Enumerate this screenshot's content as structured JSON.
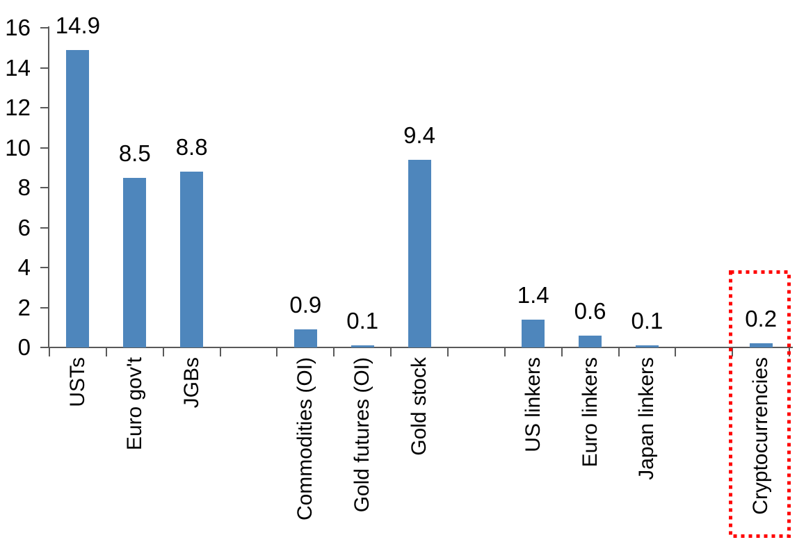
{
  "canvas": {
    "background": "#FFFFFF"
  },
  "chart_data": {
    "type": "bar",
    "title": "",
    "xlabel": "",
    "ylabel": "",
    "categories": [
      "USTs",
      "Euro gov't",
      "JGBs",
      "Commodities (OI)",
      "Gold futures (OI)",
      "Gold stock",
      "US linkers",
      "Euro linkers",
      "Japan linkers",
      "Cryptocurrencies"
    ],
    "values": [
      14.9,
      8.5,
      8.8,
      0.9,
      0.1,
      9.4,
      1.4,
      0.6,
      0.1,
      0.2
    ],
    "data_labels": [
      "14.9",
      "8.5",
      "8.8",
      "0.9",
      "0.1",
      "9.4",
      "1.4",
      "0.6",
      "0.1",
      "0.2"
    ],
    "group_gaps_after": [
      "JGBs",
      "Gold stock",
      "Japan linkers"
    ],
    "ylim": [
      0,
      16
    ],
    "yticks": [
      "0",
      "2",
      "4",
      "6",
      "8",
      "10",
      "12",
      "14",
      "16"
    ],
    "grid": false,
    "legend": false,
    "x_label_rotation_deg": 90,
    "bar_color": "#4E86BC",
    "axis_color": "#595959",
    "text_color": "#000000",
    "highlight": {
      "category": "Cryptocurrencies",
      "style": "red dotted rectangle",
      "color": "#FF0000"
    }
  }
}
